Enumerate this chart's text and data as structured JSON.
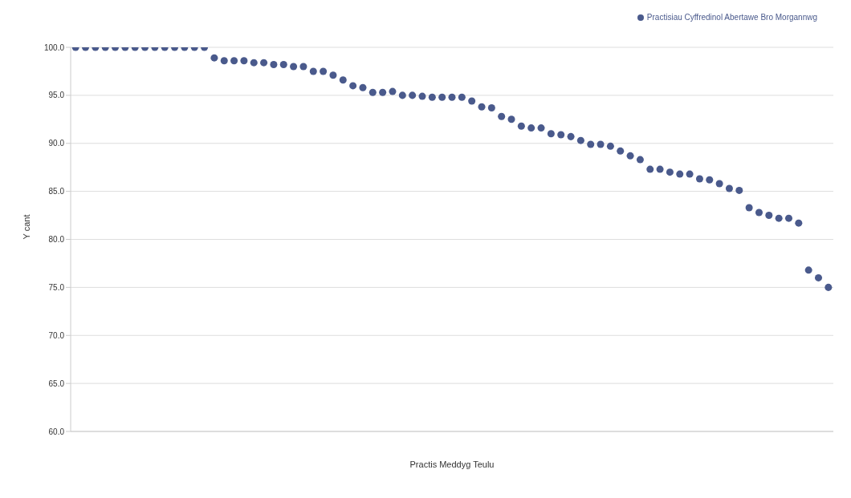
{
  "chart_data": {
    "type": "scatter",
    "xlabel": "Practis Meddyg Teulu",
    "ylabel": "Y cant",
    "categories": [
      null,
      null,
      null,
      null,
      null,
      null,
      null,
      null,
      null,
      null,
      null,
      null,
      null,
      null,
      null,
      null,
      null,
      null,
      null,
      null,
      null,
      null,
      null,
      null,
      null,
      null,
      null,
      null,
      null,
      null,
      null,
      null,
      null,
      null,
      null,
      null,
      null,
      null,
      null,
      null,
      null,
      null,
      null,
      null,
      null,
      null,
      null,
      null,
      null,
      null,
      null,
      null,
      null,
      null,
      null,
      null,
      null,
      null,
      null,
      null,
      null,
      null,
      null,
      null,
      null,
      null,
      null,
      null,
      null,
      null,
      null,
      null,
      null,
      null,
      null,
      null,
      null
    ],
    "series": [
      {
        "name": "Practisiau Cyffredinol Abertawe Bro Morgannwg",
        "color": "#4a5a8c",
        "values": [
          100,
          100,
          100,
          100,
          100,
          100,
          100,
          100,
          100,
          100,
          100,
          100,
          100,
          100,
          98.9,
          98.6,
          98.6,
          98.6,
          98.4,
          98.4,
          98.2,
          98.2,
          98.0,
          98.0,
          97.5,
          97.5,
          97.1,
          96.6,
          96.0,
          95.8,
          95.3,
          95.3,
          95.4,
          95.0,
          95.0,
          94.9,
          94.8,
          94.8,
          94.8,
          94.8,
          94.4,
          93.8,
          93.7,
          92.8,
          92.5,
          91.8,
          91.6,
          91.6,
          91.0,
          90.9,
          90.7,
          90.3,
          89.9,
          89.9,
          89.7,
          89.2,
          88.7,
          88.3,
          87.3,
          87.3,
          87.0,
          86.8,
          86.8,
          86.3,
          86.2,
          85.8,
          85.3,
          85.1,
          83.3,
          82.8,
          82.5,
          82.2,
          82.2,
          81.7,
          76.8,
          76.0,
          75.0
        ]
      }
    ],
    "ylim": [
      60,
      100
    ],
    "yticks": [
      {
        "value": 60,
        "label": "60.0"
      },
      {
        "value": 65,
        "label": "65.0"
      },
      {
        "value": 70,
        "label": "70.0"
      },
      {
        "value": 75,
        "label": "75.0"
      },
      {
        "value": 80,
        "label": "80.0"
      },
      {
        "value": 85,
        "label": "85.0"
      },
      {
        "value": 90,
        "label": "90.0"
      },
      {
        "value": 95,
        "label": "95.0"
      },
      {
        "value": 100,
        "label": "100.0"
      }
    ],
    "grid": "y",
    "legend": "top right",
    "marker": "circle"
  }
}
